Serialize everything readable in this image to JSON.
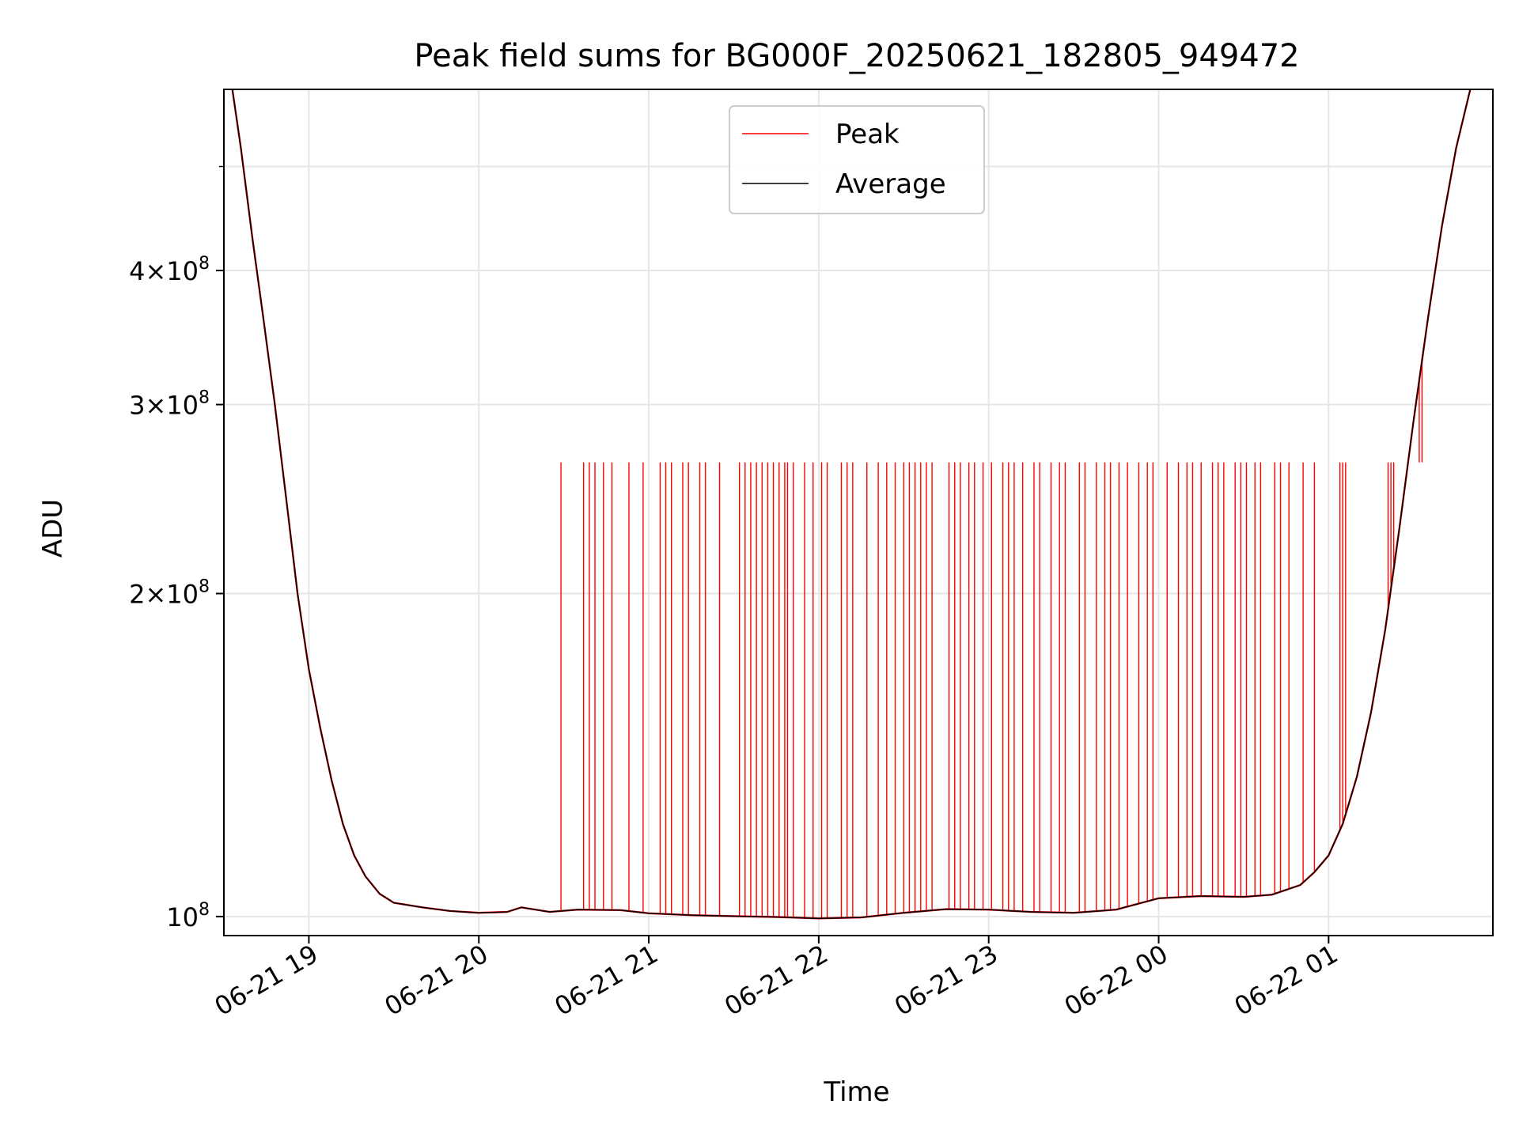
{
  "chart_data": {
    "type": "line",
    "title": "Peak field sums for BG000F_20250621_182805_949472",
    "xlabel": "Time",
    "ylabel": "ADU",
    "x_scale": "time",
    "y_scale": "log",
    "xlim": [
      "2025-06-21 18:30",
      "2025-06-22 01:58"
    ],
    "ylim": [
      96000000,
      590000000
    ],
    "x_ticks": [
      {
        "value": "2025-06-21 19:00",
        "label": "06-21 19"
      },
      {
        "value": "2025-06-21 20:00",
        "label": "06-21 20"
      },
      {
        "value": "2025-06-21 21:00",
        "label": "06-21 21"
      },
      {
        "value": "2025-06-21 22:00",
        "label": "06-21 22"
      },
      {
        "value": "2025-06-21 23:00",
        "label": "06-21 23"
      },
      {
        "value": "2025-06-22 00:00",
        "label": "06-22 00"
      },
      {
        "value": "2025-06-22 01:00",
        "label": "06-22 01"
      }
    ],
    "y_ticks": [
      {
        "value": 100000000,
        "mantissa": "",
        "base": "10",
        "exp": "8"
      },
      {
        "value": 200000000,
        "mantissa": "2×",
        "base": "10",
        "exp": "8"
      },
      {
        "value": 300000000,
        "mantissa": "3×",
        "base": "10",
        "exp": "8"
      },
      {
        "value": 400000000,
        "mantissa": "4×",
        "base": "10",
        "exp": "8"
      }
    ],
    "y_minor_ticks": [
      500000000
    ],
    "grid": true,
    "legend_position": "upper center",
    "series": [
      {
        "name": "Average",
        "color": "#000000",
        "points": [
          [
            "2025-06-21 18:33",
            590000000
          ],
          [
            "2025-06-21 18:36",
            520000000
          ],
          [
            "2025-06-21 18:40",
            430000000
          ],
          [
            "2025-06-21 18:44",
            360000000
          ],
          [
            "2025-06-21 18:48",
            300000000
          ],
          [
            "2025-06-21 18:52",
            245000000
          ],
          [
            "2025-06-21 18:56",
            200000000
          ],
          [
            "2025-06-21 19:00",
            170000000
          ],
          [
            "2025-06-21 19:04",
            150000000
          ],
          [
            "2025-06-21 19:08",
            134000000
          ],
          [
            "2025-06-21 19:12",
            122000000
          ],
          [
            "2025-06-21 19:16",
            114000000
          ],
          [
            "2025-06-21 19:20",
            109000000
          ],
          [
            "2025-06-21 19:25",
            105000000
          ],
          [
            "2025-06-21 19:30",
            103000000
          ],
          [
            "2025-06-21 19:40",
            102000000
          ],
          [
            "2025-06-21 19:50",
            101200000
          ],
          [
            "2025-06-21 20:00",
            100800000
          ],
          [
            "2025-06-21 20:10",
            101000000
          ],
          [
            "2025-06-21 20:15",
            102000000
          ],
          [
            "2025-06-21 20:25",
            101000000
          ],
          [
            "2025-06-21 20:35",
            101500000
          ],
          [
            "2025-06-21 20:50",
            101400000
          ],
          [
            "2025-06-21 21:00",
            100700000
          ],
          [
            "2025-06-21 21:15",
            100300000
          ],
          [
            "2025-06-21 21:30",
            100100000
          ],
          [
            "2025-06-21 21:45",
            99900000
          ],
          [
            "2025-06-21 22:00",
            99600000
          ],
          [
            "2025-06-21 22:15",
            99800000
          ],
          [
            "2025-06-21 22:30",
            100800000
          ],
          [
            "2025-06-21 22:45",
            101600000
          ],
          [
            "2025-06-21 23:00",
            101500000
          ],
          [
            "2025-06-21 23:15",
            101000000
          ],
          [
            "2025-06-21 23:30",
            100800000
          ],
          [
            "2025-06-21 23:45",
            101500000
          ],
          [
            "2025-06-22 00:00",
            104000000
          ],
          [
            "2025-06-22 00:15",
            104500000
          ],
          [
            "2025-06-22 00:30",
            104300000
          ],
          [
            "2025-06-22 00:40",
            104800000
          ],
          [
            "2025-06-22 00:50",
            107000000
          ],
          [
            "2025-06-22 00:55",
            110000000
          ],
          [
            "2025-06-22 01:00",
            114000000
          ],
          [
            "2025-06-22 01:05",
            122000000
          ],
          [
            "2025-06-22 01:10",
            135000000
          ],
          [
            "2025-06-22 01:15",
            155000000
          ],
          [
            "2025-06-22 01:20",
            185000000
          ],
          [
            "2025-06-22 01:25",
            230000000
          ],
          [
            "2025-06-22 01:30",
            290000000
          ],
          [
            "2025-06-22 01:35",
            360000000
          ],
          [
            "2025-06-22 01:40",
            440000000
          ],
          [
            "2025-06-22 01:45",
            520000000
          ],
          [
            "2025-06-22 01:50",
            590000000
          ]
        ]
      },
      {
        "name": "Peak",
        "color": "#ff0000",
        "spike_value": 265000000,
        "spike_times": [
          "2025-06-21 20:29",
          "2025-06-21 20:37",
          "2025-06-21 20:39",
          "2025-06-21 20:41",
          "2025-06-21 20:44",
          "2025-06-21 20:47",
          "2025-06-21 20:53",
          "2025-06-21 20:58",
          "2025-06-21 21:04",
          "2025-06-21 21:06",
          "2025-06-21 21:08",
          "2025-06-21 21:12",
          "2025-06-21 21:14",
          "2025-06-21 21:18",
          "2025-06-21 21:20",
          "2025-06-21 21:25",
          "2025-06-21 21:32",
          "2025-06-21 21:34",
          "2025-06-21 21:36",
          "2025-06-21 21:38",
          "2025-06-21 21:40",
          "2025-06-21 21:42",
          "2025-06-21 21:44",
          "2025-06-21 21:46",
          "2025-06-21 21:48",
          "2025-06-21 21:49",
          "2025-06-21 21:51",
          "2025-06-21 21:55",
          "2025-06-21 21:58",
          "2025-06-21 22:01",
          "2025-06-21 22:03",
          "2025-06-21 22:08",
          "2025-06-21 22:10",
          "2025-06-21 22:12",
          "2025-06-21 22:17",
          "2025-06-21 22:21",
          "2025-06-21 22:24",
          "2025-06-21 22:27",
          "2025-06-21 22:30",
          "2025-06-21 22:32",
          "2025-06-21 22:34",
          "2025-06-21 22:36",
          "2025-06-21 22:38",
          "2025-06-21 22:40",
          "2025-06-21 22:46",
          "2025-06-21 22:48",
          "2025-06-21 22:50",
          "2025-06-21 22:53",
          "2025-06-21 22:55",
          "2025-06-21 22:58",
          "2025-06-21 23:01",
          "2025-06-21 23:05",
          "2025-06-21 23:07",
          "2025-06-21 23:09",
          "2025-06-21 23:12",
          "2025-06-21 23:16",
          "2025-06-21 23:18",
          "2025-06-21 23:22",
          "2025-06-21 23:25",
          "2025-06-21 23:27",
          "2025-06-21 23:32",
          "2025-06-21 23:34",
          "2025-06-21 23:38",
          "2025-06-21 23:41",
          "2025-06-21 23:43",
          "2025-06-21 23:46",
          "2025-06-21 23:49",
          "2025-06-21 23:53",
          "2025-06-21 23:56",
          "2025-06-21 23:58",
          "2025-06-22 00:03",
          "2025-06-22 00:07",
          "2025-06-22 00:10",
          "2025-06-22 00:12",
          "2025-06-22 00:15",
          "2025-06-22 00:19",
          "2025-06-22 00:21",
          "2025-06-22 00:23",
          "2025-06-22 00:27",
          "2025-06-22 00:29",
          "2025-06-22 00:31",
          "2025-06-22 00:34",
          "2025-06-22 00:36",
          "2025-06-22 00:41",
          "2025-06-22 00:43",
          "2025-06-22 00:46",
          "2025-06-22 00:51",
          "2025-06-22 00:55",
          "2025-06-22 01:04",
          "2025-06-22 01:05",
          "2025-06-22 01:06",
          "2025-06-22 01:21",
          "2025-06-22 01:22",
          "2025-06-22 01:23",
          "2025-06-22 01:32",
          "2025-06-22 01:33"
        ]
      }
    ]
  }
}
